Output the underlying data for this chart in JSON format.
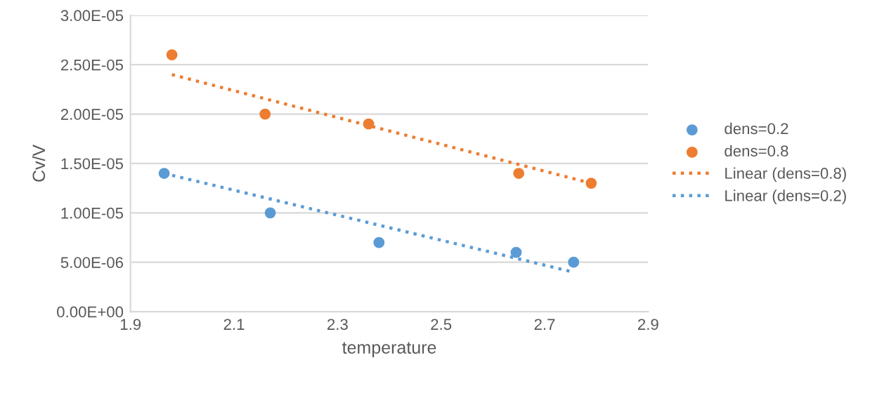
{
  "chart_data": {
    "type": "scatter",
    "xlabel": "temperature",
    "ylabel": "Cv/V",
    "xlim": [
      1.9,
      2.9
    ],
    "xticks": [
      1.9,
      2.1,
      2.3,
      2.5,
      2.7,
      2.9
    ],
    "ylim": [
      0,
      3e-05
    ],
    "yticks": [
      {
        "value": 0,
        "label": "0.00E+00"
      },
      {
        "value": 5e-06,
        "label": "5.00E-06"
      },
      {
        "value": 1e-05,
        "label": "1.00E-05"
      },
      {
        "value": 1.5e-05,
        "label": "1.50E-05"
      },
      {
        "value": 2e-05,
        "label": "2.00E-05"
      },
      {
        "value": 2.5e-05,
        "label": "2.50E-05"
      },
      {
        "value": 3e-05,
        "label": "3.00E-05"
      }
    ],
    "grid": "y",
    "legend": "right",
    "marker": "circle",
    "series": [
      {
        "name": "dens=0.2",
        "color": "#5b9bd5",
        "x": [
          1.965,
          2.17,
          2.38,
          2.645,
          2.756
        ],
        "values": [
          1.4e-05,
          1e-05,
          7e-06,
          6e-06,
          5e-06
        ]
      },
      {
        "name": "dens=0.8",
        "color": "#ed7d31",
        "x": [
          1.98,
          2.16,
          2.36,
          2.65,
          2.79
        ],
        "values": [
          2.6e-05,
          2e-05,
          1.9e-05,
          1.4e-05,
          1.3e-05
        ]
      },
      {
        "name": "Linear (dens=0.8)",
        "type": "line",
        "line_style": "dotted",
        "marker": "none",
        "color": "#ed7d31",
        "x": [
          1.98,
          2.79
        ],
        "values": [
          2.4e-05,
          1.3e-05
        ]
      },
      {
        "name": "Linear (dens=0.2)",
        "type": "line",
        "line_style": "dotted",
        "marker": "none",
        "color": "#5b9bd5",
        "x": [
          1.965,
          2.756
        ],
        "values": [
          1.4e-05,
          4e-06
        ]
      }
    ]
  }
}
